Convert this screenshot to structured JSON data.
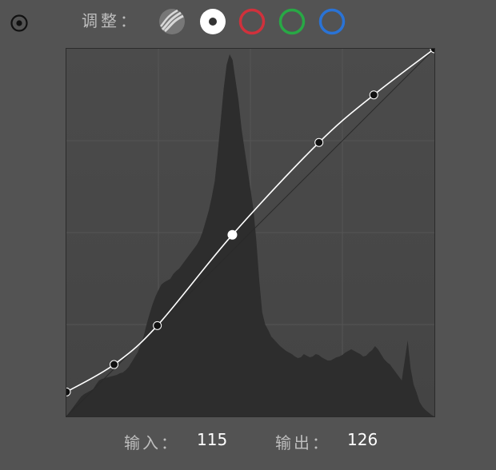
{
  "toolbar": {
    "target_icon": "target-adjust-icon",
    "adjust_label": "调整：",
    "channels": [
      {
        "name": "parametric",
        "icon": "parametric-curve-icon",
        "color": "#9a9a9a"
      },
      {
        "name": "rgb",
        "icon": "rgb-channel-icon",
        "color": "#ffffff",
        "selected": true
      },
      {
        "name": "red",
        "icon": "red-channel-icon",
        "color": "#d0313c"
      },
      {
        "name": "green",
        "icon": "green-channel-icon",
        "color": "#28a845"
      },
      {
        "name": "blue",
        "icon": "blue-channel-icon",
        "color": "#2a73d6"
      }
    ]
  },
  "curve": {
    "points": [
      {
        "in": 0,
        "out": 17
      },
      {
        "in": 33,
        "out": 36
      },
      {
        "in": 63,
        "out": 63
      },
      {
        "in": 115,
        "out": 126
      },
      {
        "in": 175,
        "out": 190
      },
      {
        "in": 213,
        "out": 223
      },
      {
        "in": 255,
        "out": 255
      }
    ],
    "selected_index": 3,
    "histogram": [
      0,
      5,
      10,
      15,
      20,
      25,
      28,
      30,
      32,
      34,
      40,
      45,
      47,
      48,
      49,
      50,
      51,
      52,
      54,
      55,
      58,
      62,
      68,
      74,
      80,
      90,
      100,
      115,
      128,
      140,
      150,
      158,
      165,
      168,
      170,
      172,
      178,
      182,
      185,
      190,
      195,
      200,
      205,
      210,
      215,
      222,
      232,
      245,
      258,
      275,
      295,
      330,
      370,
      410,
      440,
      453,
      446,
      420,
      395,
      360,
      335,
      310,
      285,
      260,
      220,
      170,
      130,
      115,
      108,
      100,
      96,
      92,
      88,
      85,
      82,
      80,
      78,
      75,
      73,
      74,
      78,
      76,
      74,
      75,
      78,
      77,
      74,
      72,
      70,
      70,
      72,
      74,
      75,
      77,
      80,
      82,
      84,
      82,
      80,
      78,
      75,
      76,
      80,
      83,
      88,
      84,
      78,
      72,
      68,
      65,
      60,
      55,
      50,
      45,
      70,
      95,
      60,
      40,
      30,
      18,
      12,
      8,
      5,
      2,
      0
    ]
  },
  "readout": {
    "input_label": "输入：",
    "input_value": "115",
    "output_label": "输出：",
    "output_value": "126"
  },
  "colors": {
    "panel_bg": "#535353",
    "chart_bg": "#474747",
    "histogram": "#2d2d2d",
    "curve": "#ffffff"
  }
}
